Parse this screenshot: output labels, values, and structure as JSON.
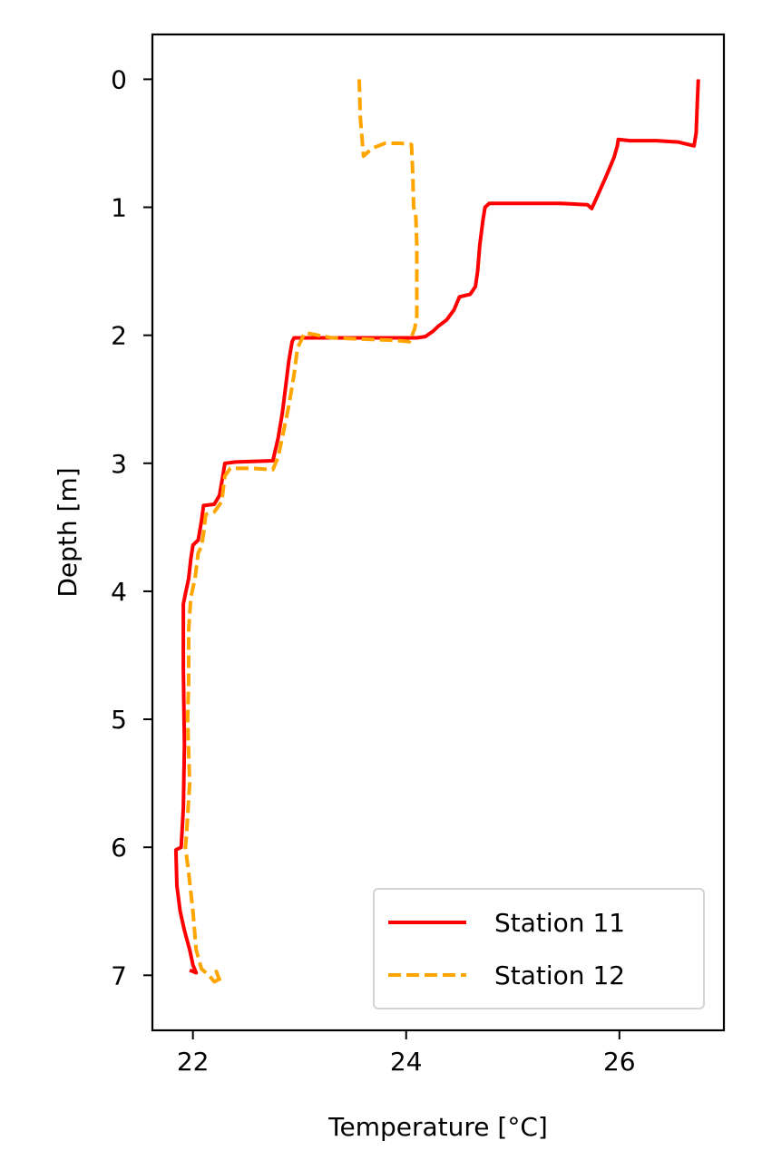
{
  "chart_data": {
    "type": "line",
    "title": "",
    "xlabel": "Temperature [°C]",
    "ylabel": "Depth [m]",
    "xlim": [
      21.62,
      26.98
    ],
    "ylim": [
      7.43,
      -0.35
    ],
    "y_inverted": true,
    "grid": false,
    "legend_position": "lower-right",
    "xticks": [
      {
        "value": 22,
        "label": "22"
      },
      {
        "value": 24,
        "label": "24"
      },
      {
        "value": 26,
        "label": "26"
      }
    ],
    "yticks": [
      {
        "value": 0,
        "label": "0"
      },
      {
        "value": 1,
        "label": "1"
      },
      {
        "value": 2,
        "label": "2"
      },
      {
        "value": 3,
        "label": "3"
      },
      {
        "value": 4,
        "label": "4"
      },
      {
        "value": 5,
        "label": "5"
      },
      {
        "value": 6,
        "label": "6"
      },
      {
        "value": 7,
        "label": "7"
      }
    ],
    "series": [
      {
        "name": "Station 11",
        "color": "#ff0000",
        "style": "solid",
        "points": [
          [
            26.74,
            0.0
          ],
          [
            26.73,
            0.2
          ],
          [
            26.72,
            0.42
          ],
          [
            26.7,
            0.52
          ],
          [
            26.55,
            0.49
          ],
          [
            26.35,
            0.48
          ],
          [
            26.1,
            0.48
          ],
          [
            25.99,
            0.47
          ],
          [
            25.98,
            0.52
          ],
          [
            25.95,
            0.61
          ],
          [
            25.88,
            0.75
          ],
          [
            25.8,
            0.9
          ],
          [
            25.74,
            1.01
          ],
          [
            25.7,
            0.98
          ],
          [
            25.45,
            0.97
          ],
          [
            25.1,
            0.97
          ],
          [
            24.78,
            0.97
          ],
          [
            24.74,
            1.0
          ],
          [
            24.72,
            1.1
          ],
          [
            24.69,
            1.3
          ],
          [
            24.67,
            1.5
          ],
          [
            24.65,
            1.62
          ],
          [
            24.6,
            1.68
          ],
          [
            24.5,
            1.7
          ],
          [
            24.45,
            1.8
          ],
          [
            24.38,
            1.88
          ],
          [
            24.3,
            1.93
          ],
          [
            24.25,
            1.97
          ],
          [
            24.18,
            2.01
          ],
          [
            24.1,
            2.02
          ],
          [
            23.7,
            2.02
          ],
          [
            23.3,
            2.02
          ],
          [
            22.95,
            2.02
          ],
          [
            22.93,
            2.05
          ],
          [
            22.9,
            2.2
          ],
          [
            22.87,
            2.4
          ],
          [
            22.84,
            2.6
          ],
          [
            22.8,
            2.8
          ],
          [
            22.75,
            2.98
          ],
          [
            22.4,
            2.99
          ],
          [
            22.3,
            3.0
          ],
          [
            22.28,
            3.1
          ],
          [
            22.25,
            3.25
          ],
          [
            22.2,
            3.32
          ],
          [
            22.1,
            3.33
          ],
          [
            22.08,
            3.45
          ],
          [
            22.05,
            3.6
          ],
          [
            22.0,
            3.64
          ],
          [
            21.98,
            3.75
          ],
          [
            21.96,
            3.9
          ],
          [
            21.93,
            4.02
          ],
          [
            21.91,
            4.1
          ],
          [
            21.91,
            4.6
          ],
          [
            21.92,
            5.2
          ],
          [
            21.91,
            5.7
          ],
          [
            21.89,
            6.0
          ],
          [
            21.84,
            6.02
          ],
          [
            21.85,
            6.3
          ],
          [
            21.88,
            6.5
          ],
          [
            21.92,
            6.65
          ],
          [
            21.97,
            6.8
          ],
          [
            22.0,
            6.92
          ],
          [
            22.03,
            6.98
          ],
          [
            21.97,
            6.96
          ]
        ]
      },
      {
        "name": "Station 12",
        "color": "#ffa500",
        "style": "dashed",
        "points": [
          [
            23.56,
            0.0
          ],
          [
            23.57,
            0.3
          ],
          [
            23.6,
            0.6
          ],
          [
            23.68,
            0.54
          ],
          [
            23.8,
            0.5
          ],
          [
            23.95,
            0.5
          ],
          [
            24.05,
            0.51
          ],
          [
            24.06,
            0.7
          ],
          [
            24.07,
            1.0
          ],
          [
            24.09,
            1.05
          ],
          [
            24.1,
            1.3
          ],
          [
            24.1,
            1.6
          ],
          [
            24.1,
            1.85
          ],
          [
            24.08,
            1.95
          ],
          [
            24.03,
            2.05
          ],
          [
            23.9,
            2.04
          ],
          [
            23.6,
            2.03
          ],
          [
            23.3,
            2.02
          ],
          [
            23.05,
            1.98
          ],
          [
            22.98,
            2.1
          ],
          [
            22.95,
            2.3
          ],
          [
            22.9,
            2.55
          ],
          [
            22.85,
            2.75
          ],
          [
            22.8,
            2.95
          ],
          [
            22.75,
            3.05
          ],
          [
            22.55,
            3.04
          ],
          [
            22.35,
            3.04
          ],
          [
            22.3,
            3.1
          ],
          [
            22.27,
            3.3
          ],
          [
            22.2,
            3.38
          ],
          [
            22.12,
            3.4
          ],
          [
            22.1,
            3.55
          ],
          [
            22.08,
            3.65
          ],
          [
            22.05,
            3.7
          ],
          [
            22.02,
            3.9
          ],
          [
            21.98,
            4.05
          ],
          [
            21.96,
            4.3
          ],
          [
            21.96,
            4.7
          ],
          [
            21.95,
            5.0
          ],
          [
            21.97,
            5.5
          ],
          [
            21.94,
            5.9
          ],
          [
            21.93,
            6.0
          ],
          [
            21.96,
            6.2
          ],
          [
            22.0,
            6.5
          ],
          [
            22.03,
            6.8
          ],
          [
            22.08,
            6.95
          ],
          [
            22.15,
            7.0
          ],
          [
            22.2,
            7.05
          ],
          [
            22.25,
            7.03
          ],
          [
            22.22,
            6.97
          ],
          [
            22.26,
            7.06
          ]
        ]
      }
    ]
  }
}
